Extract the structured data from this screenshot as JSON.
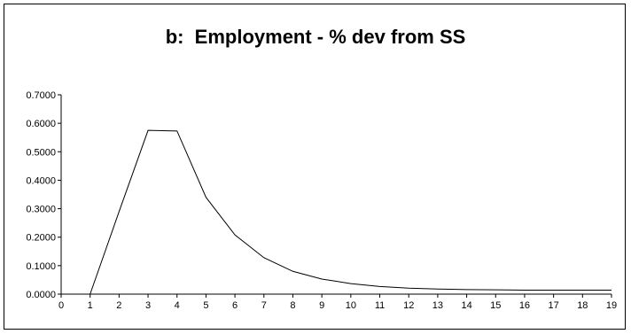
{
  "chart_data": {
    "type": "line",
    "title": "b:  Employment - % dev from SS",
    "xlabel": "",
    "ylabel": "",
    "x": [
      1,
      2,
      3,
      4,
      5,
      6,
      7,
      8,
      9,
      10,
      11,
      12,
      13,
      14,
      15,
      16,
      17,
      18,
      19
    ],
    "series": [
      {
        "values": [
          0.0,
          0.29,
          0.575,
          0.573,
          0.34,
          0.208,
          0.128,
          0.08,
          0.053,
          0.037,
          0.027,
          0.021,
          0.018,
          0.016,
          0.015,
          0.014,
          0.014,
          0.014,
          0.014
        ],
        "color": "#000000"
      }
    ],
    "xlim": [
      0,
      19
    ],
    "ylim": [
      0,
      0.7
    ],
    "xticks": [
      "0",
      "1",
      "2",
      "3",
      "4",
      "5",
      "6",
      "7",
      "8",
      "9",
      "10",
      "11",
      "12",
      "13",
      "14",
      "15",
      "16",
      "17",
      "18",
      "19"
    ],
    "yticks": [
      {
        "value": 0.0,
        "label": "0.0000"
      },
      {
        "value": 0.1,
        "label": "0.1000"
      },
      {
        "value": 0.2,
        "label": "0.2000"
      },
      {
        "value": 0.3,
        "label": "0.3000"
      },
      {
        "value": 0.4,
        "label": "0.4000"
      },
      {
        "value": 0.5,
        "label": "0.5000"
      },
      {
        "value": 0.6,
        "label": "0.6000"
      },
      {
        "value": 0.7,
        "label": "0.7000"
      }
    ],
    "grid": false,
    "legend": "none"
  }
}
